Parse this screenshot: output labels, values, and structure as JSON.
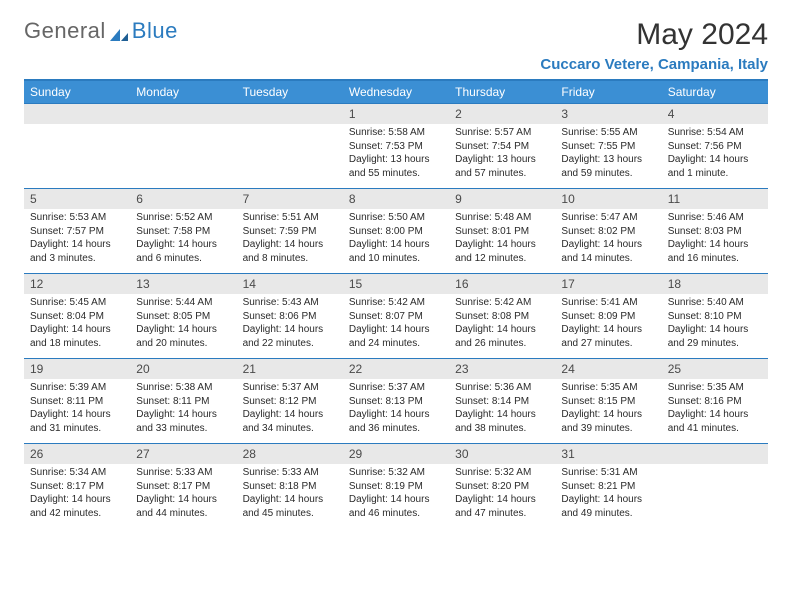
{
  "brand": {
    "part1": "General",
    "part2": "Blue"
  },
  "title": "May 2024",
  "location": "Cuccaro Vetere, Campania, Italy",
  "colors": {
    "header_bg": "#3b8fd4",
    "rule": "#2b7bbf",
    "num_band_bg": "#e8e8e8",
    "text": "#2a2a2a",
    "title_text": "#333333",
    "location_text": "#2b7bbf"
  },
  "dow": [
    "Sunday",
    "Monday",
    "Tuesday",
    "Wednesday",
    "Thursday",
    "Friday",
    "Saturday"
  ],
  "weeks": [
    [
      {
        "n": "",
        "sr": "",
        "ss": "",
        "dl": ""
      },
      {
        "n": "",
        "sr": "",
        "ss": "",
        "dl": ""
      },
      {
        "n": "",
        "sr": "",
        "ss": "",
        "dl": ""
      },
      {
        "n": "1",
        "sr": "5:58 AM",
        "ss": "7:53 PM",
        "dl": "13 hours and 55 minutes."
      },
      {
        "n": "2",
        "sr": "5:57 AM",
        "ss": "7:54 PM",
        "dl": "13 hours and 57 minutes."
      },
      {
        "n": "3",
        "sr": "5:55 AM",
        "ss": "7:55 PM",
        "dl": "13 hours and 59 minutes."
      },
      {
        "n": "4",
        "sr": "5:54 AM",
        "ss": "7:56 PM",
        "dl": "14 hours and 1 minute."
      }
    ],
    [
      {
        "n": "5",
        "sr": "5:53 AM",
        "ss": "7:57 PM",
        "dl": "14 hours and 3 minutes."
      },
      {
        "n": "6",
        "sr": "5:52 AM",
        "ss": "7:58 PM",
        "dl": "14 hours and 6 minutes."
      },
      {
        "n": "7",
        "sr": "5:51 AM",
        "ss": "7:59 PM",
        "dl": "14 hours and 8 minutes."
      },
      {
        "n": "8",
        "sr": "5:50 AM",
        "ss": "8:00 PM",
        "dl": "14 hours and 10 minutes."
      },
      {
        "n": "9",
        "sr": "5:48 AM",
        "ss": "8:01 PM",
        "dl": "14 hours and 12 minutes."
      },
      {
        "n": "10",
        "sr": "5:47 AM",
        "ss": "8:02 PM",
        "dl": "14 hours and 14 minutes."
      },
      {
        "n": "11",
        "sr": "5:46 AM",
        "ss": "8:03 PM",
        "dl": "14 hours and 16 minutes."
      }
    ],
    [
      {
        "n": "12",
        "sr": "5:45 AM",
        "ss": "8:04 PM",
        "dl": "14 hours and 18 minutes."
      },
      {
        "n": "13",
        "sr": "5:44 AM",
        "ss": "8:05 PM",
        "dl": "14 hours and 20 minutes."
      },
      {
        "n": "14",
        "sr": "5:43 AM",
        "ss": "8:06 PM",
        "dl": "14 hours and 22 minutes."
      },
      {
        "n": "15",
        "sr": "5:42 AM",
        "ss": "8:07 PM",
        "dl": "14 hours and 24 minutes."
      },
      {
        "n": "16",
        "sr": "5:42 AM",
        "ss": "8:08 PM",
        "dl": "14 hours and 26 minutes."
      },
      {
        "n": "17",
        "sr": "5:41 AM",
        "ss": "8:09 PM",
        "dl": "14 hours and 27 minutes."
      },
      {
        "n": "18",
        "sr": "5:40 AM",
        "ss": "8:10 PM",
        "dl": "14 hours and 29 minutes."
      }
    ],
    [
      {
        "n": "19",
        "sr": "5:39 AM",
        "ss": "8:11 PM",
        "dl": "14 hours and 31 minutes."
      },
      {
        "n": "20",
        "sr": "5:38 AM",
        "ss": "8:11 PM",
        "dl": "14 hours and 33 minutes."
      },
      {
        "n": "21",
        "sr": "5:37 AM",
        "ss": "8:12 PM",
        "dl": "14 hours and 34 minutes."
      },
      {
        "n": "22",
        "sr": "5:37 AM",
        "ss": "8:13 PM",
        "dl": "14 hours and 36 minutes."
      },
      {
        "n": "23",
        "sr": "5:36 AM",
        "ss": "8:14 PM",
        "dl": "14 hours and 38 minutes."
      },
      {
        "n": "24",
        "sr": "5:35 AM",
        "ss": "8:15 PM",
        "dl": "14 hours and 39 minutes."
      },
      {
        "n": "25",
        "sr": "5:35 AM",
        "ss": "8:16 PM",
        "dl": "14 hours and 41 minutes."
      }
    ],
    [
      {
        "n": "26",
        "sr": "5:34 AM",
        "ss": "8:17 PM",
        "dl": "14 hours and 42 minutes."
      },
      {
        "n": "27",
        "sr": "5:33 AM",
        "ss": "8:17 PM",
        "dl": "14 hours and 44 minutes."
      },
      {
        "n": "28",
        "sr": "5:33 AM",
        "ss": "8:18 PM",
        "dl": "14 hours and 45 minutes."
      },
      {
        "n": "29",
        "sr": "5:32 AM",
        "ss": "8:19 PM",
        "dl": "14 hours and 46 minutes."
      },
      {
        "n": "30",
        "sr": "5:32 AM",
        "ss": "8:20 PM",
        "dl": "14 hours and 47 minutes."
      },
      {
        "n": "31",
        "sr": "5:31 AM",
        "ss": "8:21 PM",
        "dl": "14 hours and 49 minutes."
      },
      {
        "n": "",
        "sr": "",
        "ss": "",
        "dl": ""
      }
    ]
  ]
}
